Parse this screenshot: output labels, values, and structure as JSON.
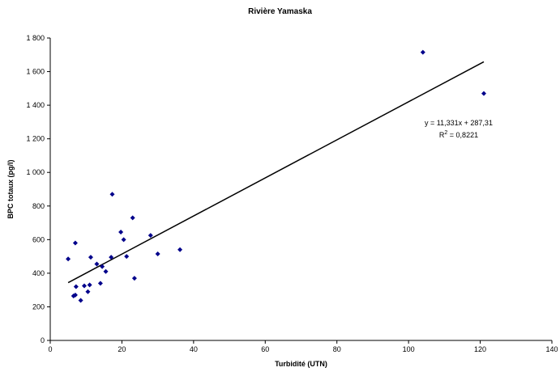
{
  "chart_data": {
    "type": "scatter",
    "title": "Rivière Yamaska",
    "xlabel": "Turbidité (UTN)",
    "ylabel": "BPC totaux (pg/l)",
    "xlim": [
      0,
      140
    ],
    "ylim": [
      0,
      1800
    ],
    "x_ticks": [
      0,
      20,
      40,
      60,
      80,
      100,
      120,
      140
    ],
    "y_ticks": [
      0,
      200,
      400,
      600,
      800,
      1000,
      1200,
      1400,
      1600,
      1800
    ],
    "x_tick_labels": [
      "0",
      "20",
      "40",
      "60",
      "80",
      "100",
      "120",
      "140"
    ],
    "y_tick_labels": [
      "0",
      "200",
      "400",
      "600",
      "800",
      "1 000",
      "1 200",
      "1 400",
      "1 600",
      "1 800"
    ],
    "grid": false,
    "legend": false,
    "marker_color": "#00008B",
    "series": [
      {
        "points": [
          [
            5,
            485
          ],
          [
            6.5,
            265
          ],
          [
            7,
            270
          ],
          [
            7,
            580
          ],
          [
            7.2,
            320
          ],
          [
            8.5,
            238
          ],
          [
            9.5,
            325
          ],
          [
            10.5,
            290
          ],
          [
            11,
            330
          ],
          [
            11.3,
            495
          ],
          [
            13,
            455
          ],
          [
            14,
            340
          ],
          [
            14.5,
            440
          ],
          [
            15.5,
            410
          ],
          [
            17,
            495
          ],
          [
            17.3,
            870
          ],
          [
            19.7,
            645
          ],
          [
            20.5,
            600
          ],
          [
            21.3,
            500
          ],
          [
            23,
            730
          ],
          [
            23.5,
            370
          ],
          [
            28,
            625
          ],
          [
            30,
            515
          ],
          [
            36.2,
            540
          ],
          [
            104,
            1715
          ],
          [
            121,
            1470
          ]
        ]
      }
    ],
    "trendline": {
      "slope": 11.331,
      "intercept": 287.31,
      "x_range": [
        5,
        121
      ],
      "equation": "y = 11,331x + 287,31",
      "r2_prefix": "R",
      "r2_sup": "2",
      "r2_value": " = 0,8221"
    }
  }
}
